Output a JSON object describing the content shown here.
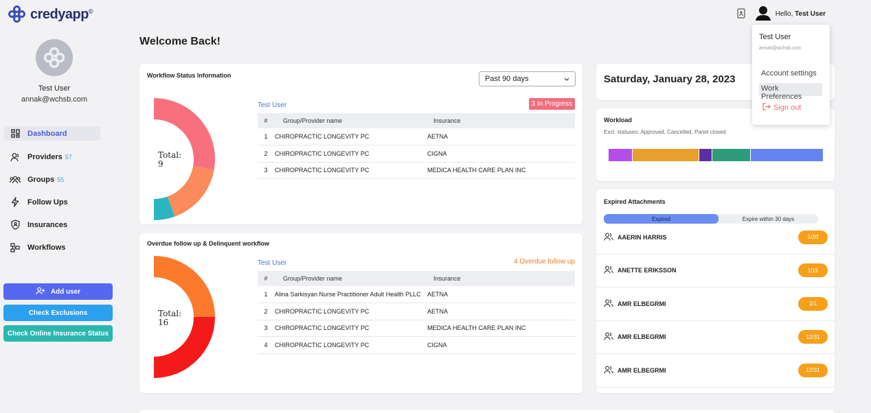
{
  "app": {
    "name": "credyapp",
    "mark": "©"
  },
  "header": {
    "greeting": "Hello,",
    "user": "Test User"
  },
  "profile_menu": {
    "name": "Test User",
    "email": "annak@wchsb.com",
    "items": [
      "Account settings",
      "Work Preferences"
    ],
    "signout": "Sign out"
  },
  "sidebar": {
    "name": "Test User",
    "email": "annak@wchsb.com",
    "nav": [
      {
        "label": "Dashboard",
        "count": "",
        "icon": "grid-icon"
      },
      {
        "label": "Providers",
        "count": "57",
        "icon": "user-icon"
      },
      {
        "label": "Groups",
        "count": "55",
        "icon": "users-icon"
      },
      {
        "label": "Follow Ups",
        "count": "",
        "icon": "lightning-icon"
      },
      {
        "label": "Insurances",
        "count": "",
        "icon": "shield-icon"
      },
      {
        "label": "Workflows",
        "count": "",
        "icon": "workflow-icon"
      }
    ],
    "buttons": [
      "Add user",
      "Check Exclusions",
      "Check Online Insurance Status"
    ]
  },
  "welcome": "Welcome Back!",
  "workflow": {
    "title": "Workflow Status Information",
    "period": "Past 90 days",
    "user": "Test User",
    "status": "3 In Progress",
    "total_label": "Total:",
    "total": "9",
    "donut": [
      {
        "value": 5,
        "color": "#f8707e"
      },
      {
        "value": 3,
        "color": "#fb8a5c"
      },
      {
        "value": 1,
        "color": "#2bb5c0"
      }
    ],
    "columns": [
      "#",
      "Group/Provider name",
      "Insurance"
    ],
    "rows": [
      [
        "1",
        "CHIROPRACTIC LONGEVITY PC",
        "AETNA"
      ],
      [
        "2",
        "CHIROPRACTIC LONGEVITY PC",
        "CIGNA"
      ],
      [
        "3",
        "CHIROPRACTIC LONGEVITY PC",
        "MEDICA HEALTH CARE PLAN INC"
      ]
    ]
  },
  "overdue": {
    "title": "Overdue follow up & Delinquent workflow",
    "user": "Test User",
    "status": "4 Overdue follow up",
    "total_label": "Total:",
    "total": "16",
    "donut": [
      {
        "value": 8,
        "color": "#fb7a2c"
      },
      {
        "value": 8,
        "color": "#f51a1a"
      }
    ],
    "columns": [
      "#",
      "Group/Provider name",
      "Insurance"
    ],
    "rows": [
      [
        "1",
        "Alina Sarkisyan Nurse Practitioner Adult Health PLLC",
        "AETNA"
      ],
      [
        "2",
        "CHIROPRACTIC LONGEVITY PC",
        "AETNA"
      ],
      [
        "3",
        "CHIROPRACTIC LONGEVITY PC",
        "MEDICA HEALTH CARE PLAN INC"
      ],
      [
        "4",
        "CHIROPRACTIC LONGEVITY PC",
        "CIGNA"
      ]
    ]
  },
  "date": "Saturday, January 28, 2023",
  "workload": {
    "title": "Workload",
    "subtitle": "Excl. statuses: Approved, Cancelled, Panel closed",
    "segments": [
      {
        "value": 11,
        "color": "#b44ee8"
      },
      {
        "value": 31,
        "color": "#e89f2b"
      },
      {
        "value": 6,
        "color": "#5a2fa6"
      },
      {
        "value": 18,
        "color": "#2e9b7a"
      },
      {
        "value": 34,
        "color": "#6583f0"
      }
    ]
  },
  "attachments": {
    "title": "Expired Attachments",
    "tabs": [
      "Expired",
      "Expire within 30 days"
    ],
    "items": [
      {
        "name": "AAERIN HARRIS",
        "badge": "1/20"
      },
      {
        "name": "ANETTE ERIKSSON",
        "badge": "1/15"
      },
      {
        "name": "AMR ELBEGRMI",
        "badge": "1/1"
      },
      {
        "name": "AMR ELBEGRMI",
        "badge": "12/31"
      },
      {
        "name": "AMR ELBEGRMI",
        "badge": "12/31"
      }
    ]
  },
  "colors": {
    "accent": "#4a5cd6",
    "add_user": "#5468f0",
    "exclusions": "#2ba0ee",
    "insurance_status": "#2bb6b0"
  }
}
